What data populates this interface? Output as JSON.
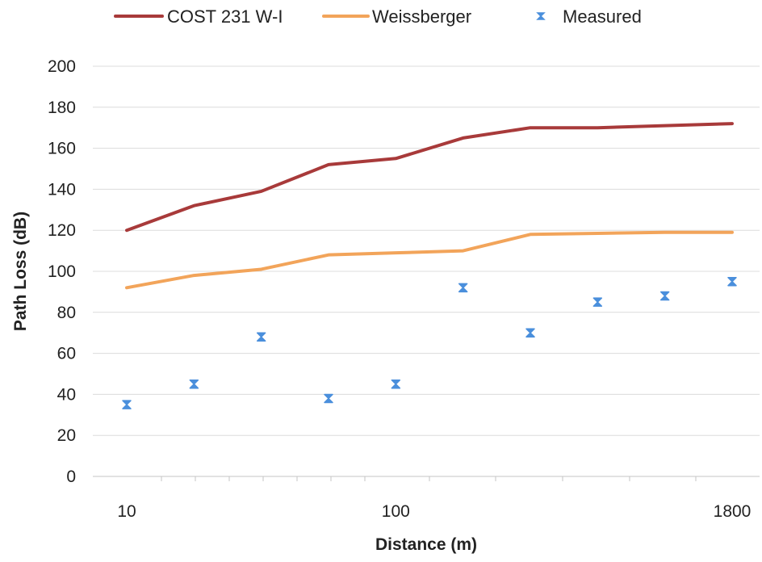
{
  "chart_data": {
    "type": "line",
    "title": "",
    "xlabel": "Distance (m)",
    "ylabel": "Path Loss (dB)",
    "ylim": [
      0,
      200
    ],
    "y_ticks": [
      0,
      20,
      40,
      60,
      80,
      100,
      120,
      140,
      160,
      180,
      200
    ],
    "x_tick_labels": [
      "10",
      "100",
      "1800"
    ],
    "x_categories": 10,
    "grid": "horizontal",
    "legend_position": "top",
    "series": [
      {
        "name": "COST 231 W-I",
        "kind": "line",
        "color": "#a83a3a",
        "values": [
          120,
          132,
          139,
          152,
          155,
          165,
          170,
          170,
          171,
          172
        ]
      },
      {
        "name": "Weissberger",
        "kind": "line",
        "color": "#f2a45a",
        "values": [
          92,
          98,
          101,
          108,
          109,
          110,
          118,
          118.5,
          119,
          119
        ]
      },
      {
        "name": "Measured",
        "kind": "marker",
        "color": "#4a8fdc",
        "values": [
          35,
          45,
          68,
          38,
          45,
          92,
          70,
          85,
          88,
          95
        ]
      }
    ]
  }
}
